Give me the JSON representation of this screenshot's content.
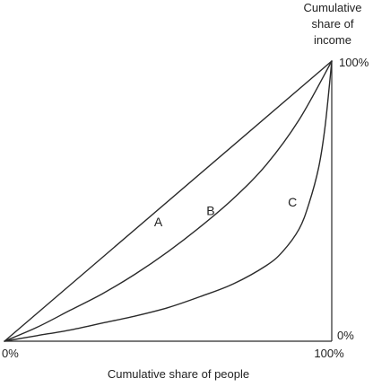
{
  "chart_data": {
    "type": "line",
    "title": "",
    "xlabel": "Cumulative share of people",
    "ylabel_lines": [
      "Cumulative",
      "share of",
      "income"
    ],
    "x_tick_labels": {
      "min": "0%",
      "max": "100%"
    },
    "y_tick_labels": {
      "min": "0%",
      "max": "100%"
    },
    "xlim": [
      0,
      100
    ],
    "ylim": [
      0,
      100
    ],
    "grid": false,
    "series": [
      {
        "name": "A",
        "x": [
          0,
          100
        ],
        "y": [
          0,
          100
        ]
      },
      {
        "name": "B",
        "x": [
          0,
          10,
          20,
          30,
          40,
          50,
          60,
          70,
          80,
          90,
          100
        ],
        "y": [
          0,
          5,
          11,
          17,
          24,
          32,
          41,
          51,
          63,
          79,
          100
        ]
      },
      {
        "name": "C",
        "x": [
          0,
          10,
          20,
          30,
          40,
          50,
          60,
          70,
          80,
          85,
          90,
          93,
          96,
          98,
          100
        ],
        "y": [
          0,
          2,
          4,
          6.5,
          9,
          12,
          16,
          20.5,
          27,
          32,
          40,
          49,
          62,
          77,
          100
        ]
      }
    ],
    "curve_label_points": {
      "A": {
        "x": 47,
        "y": 41
      },
      "B": {
        "x": 63,
        "y": 45
      },
      "C": {
        "x": 88,
        "y": 48
      }
    },
    "colors": {
      "line": "#2a2a2a",
      "text": "#222222"
    }
  }
}
